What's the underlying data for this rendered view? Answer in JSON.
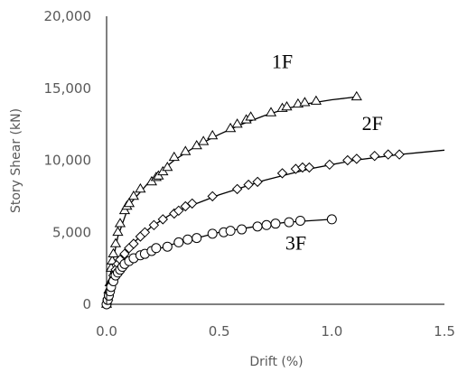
{
  "chart_data": {
    "type": "scatter",
    "title": "",
    "xlabel": "Drift (%)",
    "ylabel": "Story Shear (kN)",
    "xlim": [
      0,
      1.5
    ],
    "ylim": [
      0,
      20000
    ],
    "x_ticks": [
      0,
      0.5,
      1.0,
      1.5
    ],
    "x_tick_labels": [
      "0.0",
      "0.5",
      "1.0",
      "1.5"
    ],
    "y_ticks": [
      0,
      5000,
      10000,
      15000,
      20000
    ],
    "y_tick_labels": [
      "0",
      "5,000",
      "10,000",
      "15,000",
      "20,000"
    ],
    "grid": false,
    "legend": "none",
    "series": [
      {
        "name": "1F",
        "marker": "triangle",
        "color": "#000000",
        "x": [
          0.0,
          0.005,
          0.01,
          0.015,
          0.02,
          0.025,
          0.03,
          0.04,
          0.05,
          0.06,
          0.08,
          0.09,
          0.1,
          0.12,
          0.15,
          0.2,
          0.22,
          0.23,
          0.25,
          0.27,
          0.3,
          0.35,
          0.4,
          0.43,
          0.47,
          0.55,
          0.58,
          0.62,
          0.64,
          0.73,
          0.78,
          0.8,
          0.85,
          0.88,
          0.93,
          1.11
        ],
        "y": [
          0,
          500,
          1000,
          1500,
          2500,
          3000,
          3500,
          4200,
          5000,
          5600,
          6500,
          6800,
          7000,
          7500,
          8000,
          8500,
          8800,
          8900,
          9200,
          9500,
          10200,
          10600,
          11000,
          11300,
          11700,
          12200,
          12500,
          12800,
          13000,
          13300,
          13600,
          13700,
          13900,
          14000,
          14100,
          14400
        ],
        "fit_x": [
          0,
          0.02,
          0.05,
          0.1,
          0.2,
          0.3,
          0.4,
          0.5,
          0.6,
          0.7,
          0.8,
          0.9,
          1.0,
          1.11
        ],
        "fit_y": [
          0,
          2400,
          4700,
          6900,
          8700,
          10000,
          11000,
          11800,
          12500,
          13100,
          13600,
          13950,
          14200,
          14400
        ]
      },
      {
        "name": "2F",
        "marker": "diamond",
        "color": "#000000",
        "x": [
          0.0,
          0.005,
          0.01,
          0.02,
          0.03,
          0.04,
          0.05,
          0.06,
          0.08,
          0.1,
          0.12,
          0.15,
          0.17,
          0.21,
          0.25,
          0.3,
          0.32,
          0.35,
          0.38,
          0.47,
          0.58,
          0.63,
          0.67,
          0.78,
          0.84,
          0.87,
          0.9,
          0.99,
          1.07,
          1.11,
          1.19,
          1.25,
          1.3
        ],
        "y": [
          0,
          400,
          800,
          1400,
          2000,
          2400,
          2800,
          3100,
          3500,
          3900,
          4200,
          4700,
          5000,
          5500,
          5900,
          6300,
          6500,
          6800,
          7000,
          7500,
          8000,
          8300,
          8500,
          9100,
          9400,
          9500,
          9500,
          9700,
          10000,
          10100,
          10300,
          10400,
          10400
        ],
        "fit_x": [
          0,
          0.02,
          0.05,
          0.1,
          0.2,
          0.3,
          0.4,
          0.5,
          0.6,
          0.7,
          0.8,
          0.9,
          1.0,
          1.1,
          1.2,
          1.3,
          1.4,
          1.5
        ],
        "fit_y": [
          0,
          1500,
          2800,
          4000,
          5400,
          6400,
          7000,
          7600,
          8100,
          8600,
          9000,
          9400,
          9700,
          10000,
          10200,
          10400,
          10550,
          10700
        ]
      },
      {
        "name": "3F",
        "marker": "circle",
        "color": "#000000",
        "x": [
          0.0,
          0.005,
          0.01,
          0.015,
          0.02,
          0.03,
          0.04,
          0.05,
          0.06,
          0.07,
          0.08,
          0.1,
          0.12,
          0.15,
          0.17,
          0.2,
          0.22,
          0.27,
          0.32,
          0.36,
          0.4,
          0.47,
          0.52,
          0.55,
          0.6,
          0.67,
          0.71,
          0.75,
          0.81,
          0.86,
          1.0
        ],
        "y": [
          0,
          300,
          600,
          900,
          1200,
          1600,
          2000,
          2200,
          2400,
          2600,
          2800,
          3000,
          3200,
          3400,
          3500,
          3700,
          3900,
          4000,
          4300,
          4500,
          4600,
          4900,
          5000,
          5100,
          5200,
          5400,
          5500,
          5600,
          5700,
          5800,
          5900
        ],
        "fit_x": [
          0,
          0.02,
          0.05,
          0.1,
          0.2,
          0.3,
          0.4,
          0.5,
          0.6,
          0.7,
          0.8,
          0.9,
          1.0
        ],
        "fit_y": [
          0,
          1200,
          2200,
          3000,
          3700,
          4200,
          4600,
          5000,
          5250,
          5500,
          5700,
          5800,
          5900
        ]
      }
    ],
    "annotations": [
      {
        "text": "1F",
        "x": 0.78,
        "y": 16400
      },
      {
        "text": "2F",
        "x": 1.18,
        "y": 12100
      },
      {
        "text": "3F",
        "x": 0.84,
        "y": 3800
      }
    ]
  }
}
